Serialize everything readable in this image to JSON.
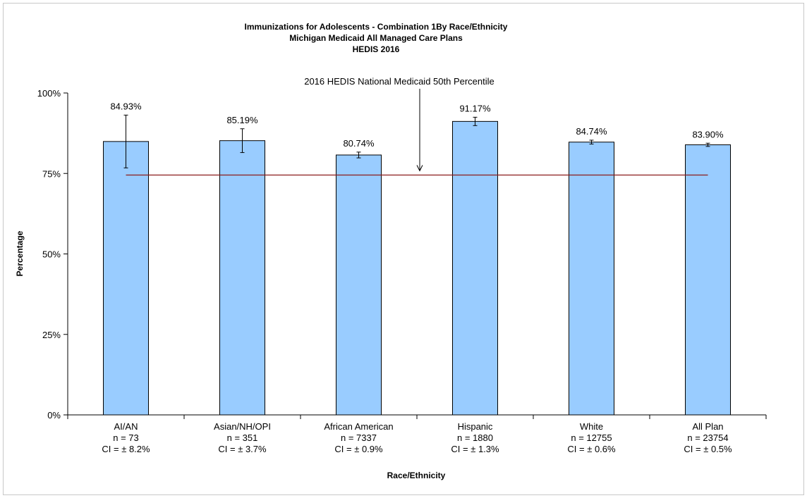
{
  "chart_data": {
    "type": "bar",
    "title": "Immunizations for Adolescents - Combination 1By Race/Ethnicity",
    "subtitle": [
      "Michigan Medicaid All Managed Care Plans",
      "HEDIS 2016"
    ],
    "xlabel": "Race/Ethnicity",
    "ylabel": "Percentage",
    "ylim": [
      0,
      100
    ],
    "yticks": [
      {
        "value": 0,
        "label": "0%"
      },
      {
        "value": 25,
        "label": "25%"
      },
      {
        "value": 50,
        "label": "50%"
      },
      {
        "value": 75,
        "label": "75%"
      },
      {
        "value": 100,
        "label": "100%"
      }
    ],
    "categories": [
      {
        "name": "AI/AN",
        "n": "n = 73",
        "ci": "CI =  ± 8.2%"
      },
      {
        "name": "Asian/NH/OPI",
        "n": "n = 351",
        "ci": "CI =  ± 3.7%"
      },
      {
        "name": "African American",
        "n": "n = 7337",
        "ci": "CI =  ± 0.9%"
      },
      {
        "name": "Hispanic",
        "n": "n = 1880",
        "ci": "CI =  ± 1.3%"
      },
      {
        "name": "White",
        "n": "n = 12755",
        "ci": "CI =  ± 0.6%"
      },
      {
        "name": "All Plan",
        "n": "n = 23754",
        "ci": "CI =  ± 0.5%"
      }
    ],
    "values": [
      84.93,
      85.19,
      80.74,
      91.17,
      84.74,
      83.9
    ],
    "value_labels": [
      "84.93%",
      "85.19%",
      "80.74%",
      "91.17%",
      "84.74%",
      "83.90%"
    ],
    "ci": [
      8.2,
      3.7,
      0.9,
      1.3,
      0.6,
      0.5
    ],
    "reference_line": {
      "value": 74.5,
      "label": "2016 HEDIS National Medicaid 50th Percentile",
      "color": "#8b1a1a"
    },
    "bar_color": "#99ccff",
    "grid": false,
    "legend": "none"
  }
}
